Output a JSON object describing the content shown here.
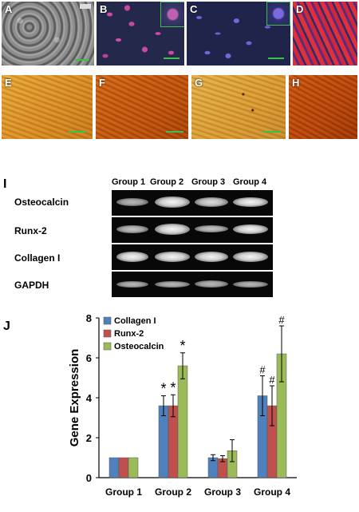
{
  "panels": {
    "A": "A",
    "B": "B",
    "C": "C",
    "D": "D",
    "E": "E",
    "F": "F",
    "G": "G",
    "H": "H"
  },
  "blot": {
    "label": "I",
    "groups": [
      "Group 1",
      "Group 2",
      "Group 3",
      "Group 4"
    ],
    "rows": [
      "Osteocalcin",
      "Runx-2",
      "Collagen I",
      "GAPDH"
    ]
  },
  "chart_label": "J",
  "chart_data": {
    "type": "bar",
    "categories": [
      "Group 1",
      "Group 2",
      "Group 3",
      "Group 4"
    ],
    "ylabel": "Gene Expression",
    "xlabel": "",
    "ylim": [
      0,
      8
    ],
    "yticks": [
      0,
      2,
      4,
      6,
      8
    ],
    "legend_position": "top-left",
    "series": [
      {
        "name": "Collagen I",
        "color": "#4f81bd",
        "values": [
          1.0,
          3.6,
          1.0,
          4.1
        ],
        "errors": [
          0,
          0.5,
          0.15,
          1.0
        ]
      },
      {
        "name": "Runx-2",
        "color": "#c0504d",
        "values": [
          1.0,
          3.6,
          0.95,
          3.6
        ],
        "errors": [
          0,
          0.55,
          0.15,
          1.0
        ]
      },
      {
        "name": "Osteocalcin",
        "color": "#9bbb59",
        "values": [
          1.0,
          5.6,
          1.35,
          6.2
        ],
        "errors": [
          0,
          0.65,
          0.55,
          1.4
        ]
      }
    ],
    "annotations": [
      {
        "category": "Group 2",
        "series": [
          "Collagen I",
          "Runx-2",
          "Osteocalcin"
        ],
        "symbol": "*"
      },
      {
        "category": "Group 4",
        "series": [
          "Collagen I",
          "Runx-2",
          "Osteocalcin"
        ],
        "symbol": "#"
      }
    ]
  }
}
